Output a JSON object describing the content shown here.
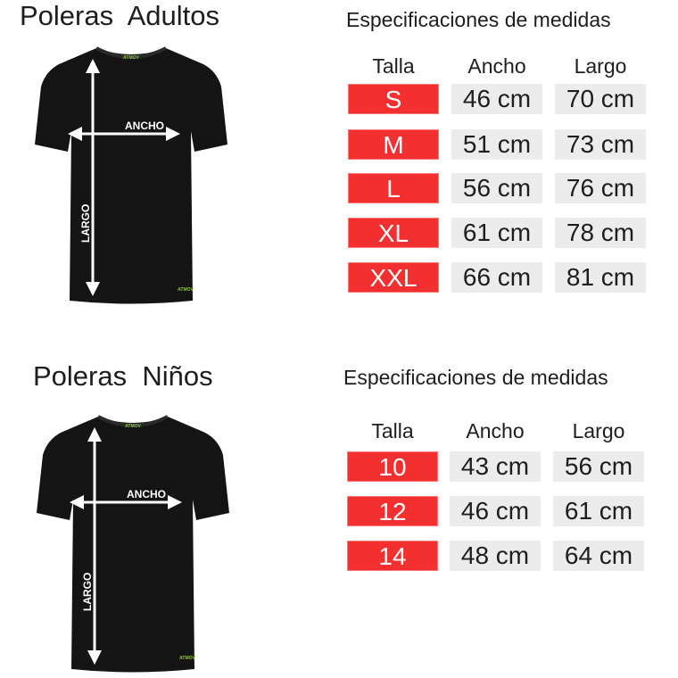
{
  "adults": {
    "title": "Poleras  Adultos",
    "spec_title": "Especificaciones de medidas",
    "headers": [
      "Talla",
      "Ancho",
      "Largo"
    ],
    "rows": [
      {
        "size": "S",
        "ancho": "46 cm",
        "largo": "70 cm"
      },
      {
        "size": "M",
        "ancho": "51 cm",
        "largo": "73 cm"
      },
      {
        "size": "L",
        "ancho": "56 cm",
        "largo": "76 cm"
      },
      {
        "size": "XL",
        "ancho": "61 cm",
        "largo": "78 cm"
      },
      {
        "size": "XXL",
        "ancho": "66 cm",
        "largo": "81 cm"
      }
    ],
    "shirt": {
      "width_label": "ANCHO",
      "length_label": "LARGO",
      "logo": "ATMOV"
    }
  },
  "kids": {
    "title": "Poleras  Niños",
    "spec_title": "Especificaciones de medidas",
    "headers": [
      "Talla",
      "Ancho",
      "Largo"
    ],
    "rows": [
      {
        "size": "10",
        "ancho": "43 cm",
        "largo": "56 cm"
      },
      {
        "size": "12",
        "ancho": "46 cm",
        "largo": "61 cm"
      },
      {
        "size": "14",
        "ancho": "48 cm",
        "largo": "64 cm"
      }
    ],
    "shirt": {
      "width_label": "ANCHO",
      "length_label": "LARGO",
      "logo": "ATMOV"
    }
  },
  "colors": {
    "size_cell": "#f42f2f",
    "measure_cell": "#ececec",
    "shirt": "#141414",
    "arrow": "#ffffff",
    "logo": "#8dc63f"
  }
}
